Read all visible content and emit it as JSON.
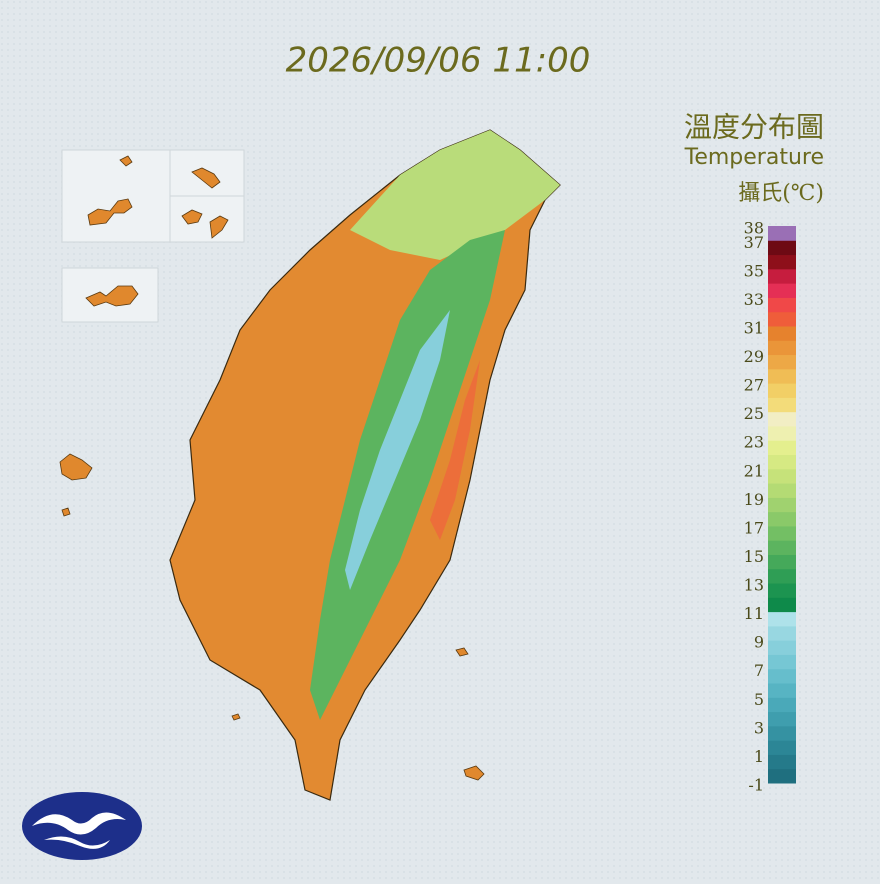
{
  "title": "2026/09/06 11:00",
  "legend": {
    "title": "溫度分布圖",
    "subtitle": "Temperature",
    "unit": "攝氏(℃)",
    "range": [
      -1,
      38
    ],
    "ticks": [
      38,
      37,
      35,
      33,
      31,
      29,
      27,
      25,
      23,
      21,
      19,
      17,
      15,
      13,
      11,
      9,
      7,
      5,
      3,
      1,
      -1
    ],
    "colors": [
      "#1f6f7f",
      "#257a8a",
      "#2c8696",
      "#3592a2",
      "#3f9eae",
      "#4aa9b9",
      "#57b4c3",
      "#66becc",
      "#76c7d4",
      "#87cfdb",
      "#98d7e1",
      "#aee2ea",
      "#0e8a4a",
      "#1c9450",
      "#2f9e55",
      "#45a95a",
      "#5cb45f",
      "#73bf64",
      "#8ac969",
      "#a0d26f",
      "#b4db74",
      "#c6e27a",
      "#d6e983",
      "#e4ef8e",
      "#eef0b0",
      "#f2eec4",
      "#f3dc7a",
      "#f2cf66",
      "#f0bd55",
      "#eda846",
      "#ea9539",
      "#e6822d",
      "#ef5d3a",
      "#f04848",
      "#e52f55",
      "#c61d3e",
      "#8e0f1a",
      "#6e0a14",
      "#9a6fb5"
    ]
  }
}
